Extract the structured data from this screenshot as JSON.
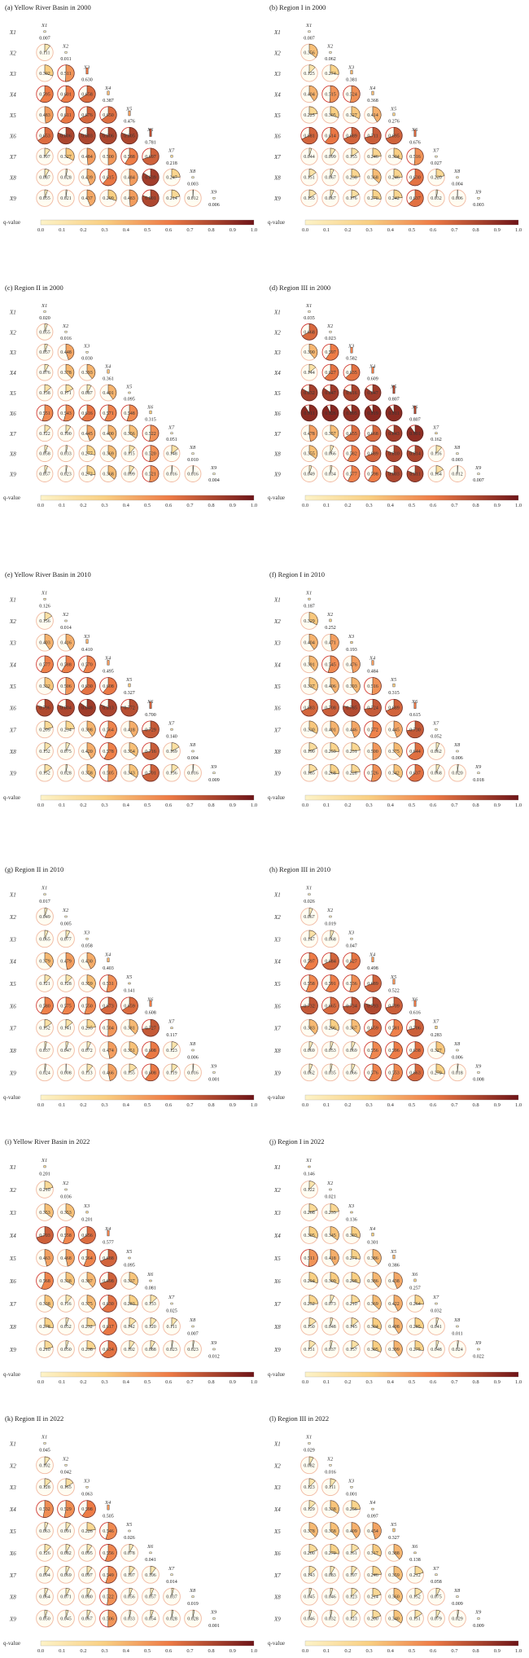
{
  "figure": {
    "legend_label": "q-value",
    "legend_ticks": [
      "0.0",
      "0.1",
      "0.2",
      "0.3",
      "0.4",
      "0.5",
      "0.6",
      "0.7",
      "0.8",
      "0.9",
      "1.0"
    ],
    "legend_range": [
      0,
      1
    ],
    "variables": [
      "X1",
      "X2",
      "X3",
      "X4",
      "X5",
      "X6",
      "X7",
      "X8",
      "X9"
    ],
    "colors": {
      "low": "#fdf3c8",
      "mid1": "#f9cf82",
      "mid2": "#ee7b46",
      "high": "#6e1418",
      "ring": "#f1b9a2",
      "ring_high": "#d23b36",
      "panel_bg": "#fffdf2"
    }
  },
  "chart_data": [
    {
      "type": "heatmap",
      "title": "(a) Yellow River Basin in 2000",
      "diag": [
        0.007,
        0.011,
        0.63,
        0.387,
        0.476,
        0.781,
        0.218,
        0.003,
        0.006
      ],
      "lower": [
        [
          0.111
        ],
        [
          0.302,
          0.511
        ],
        [
          0.595,
          0.601,
          0.658
        ],
        [
          0.483,
          0.611,
          0.676,
          0.65
        ],
        [
          0.653,
          0.806,
          0.803,
          0.806,
          0.805
        ],
        [
          0.107,
          0.327,
          0.484,
          0.5,
          0.588,
          0.697
        ],
        [
          0.087,
          0.028,
          0.439,
          0.615,
          0.484,
          0.839,
          0.247
        ],
        [
          0.055,
          0.021,
          0.437,
          0.299,
          0.483,
          0.801,
          0.214,
          0.012
        ]
      ]
    },
    {
      "type": "heatmap",
      "title": "(b) Region I in 2000",
      "diag": [
        0.007,
        0.062,
        0.381,
        0.368,
        0.276,
        0.676,
        0.027,
        0.004,
        0.003
      ],
      "lower": [
        [
          0.356
        ],
        [
          0.125,
          0.274
        ],
        [
          0.404,
          0.515,
          0.524
        ],
        [
          0.225,
          0.305,
          0.327,
          0.414
        ],
        [
          0.681,
          0.614,
          0.689,
          0.711,
          0.695
        ],
        [
          0.044,
          0.099,
          0.155,
          0.246,
          0.304,
          0.516
        ],
        [
          0.151,
          0.067,
          0.238,
          0.368,
          0.246,
          0.63,
          0.22
        ],
        [
          0.155,
          0.067,
          0.176,
          0.27,
          0.242,
          0.637,
          0.032,
          0.006
        ]
      ]
    },
    {
      "type": "heatmap",
      "title": "(c) Region II in 2000",
      "diag": [
        0.02,
        0.016,
        0.03,
        0.361,
        0.095,
        0.315,
        0.051,
        0.01,
        0.004
      ],
      "lower": [
        [
          0.055
        ],
        [
          0.057,
          0.448
        ],
        [
          0.076,
          0.378,
          0.393
        ],
        [
          0.138,
          0.171,
          0.087,
          0.401
        ],
        [
          0.551,
          0.543,
          0.616,
          0.571,
          0.548
        ],
        [
          0.122,
          0.1,
          0.445,
          0.4,
          0.356,
          0.522
        ],
        [
          0.058,
          0.033,
          0.277,
          0.369,
          0.115,
          0.52,
          0.148
        ],
        [
          0.057,
          0.023,
          0.272,
          0.368,
          0.099,
          0.521,
          0.016,
          0.016
        ]
      ]
    },
    {
      "type": "heatmap",
      "title": "(d) Region III in 2000",
      "diag": [
        0.035,
        0.023,
        0.582,
        0.609,
        0.807,
        0.807,
        0.162,
        0.003,
        0.007
      ],
      "lower": [
        [
          0.668
        ],
        [
          0.39,
          0.597
        ],
        [
          0.144,
          0.627,
          0.635
        ],
        [
          0.832,
          0.847,
          0.816,
          0.847
        ],
        [
          0.911,
          0.926,
          0.895,
          0.919,
          0.911
        ],
        [
          0.478,
          0.357,
          0.655,
          0.668,
          0.843,
          0.901
        ],
        [
          0.355,
          0.066,
          0.582,
          0.689,
          0.81,
          0.814,
          0.116
        ],
        [
          0.049,
          0.034,
          0.577,
          0.598,
          0.803,
          0.811,
          0.164,
          0.012
        ]
      ]
    },
    {
      "type": "heatmap",
      "title": "(e) Yellow River Basin in 2010",
      "diag": [
        0.126,
        0.014,
        0.41,
        0.495,
        0.327,
        0.7,
        0.14,
        0.004,
        0.009
      ],
      "lower": [
        [
          0.156
        ],
        [
          0.403,
          0.416
        ],
        [
          0.577,
          0.588,
          0.57
        ],
        [
          0.332,
          0.506,
          0.63,
          0.608
        ],
        [
          0.796,
          0.804,
          0.848,
          0.813,
          0.772
        ],
        [
          0.209,
          0.234,
          0.398,
          0.564,
          0.418,
          0.729
        ],
        [
          0.132,
          0.075,
          0.42,
          0.578,
          0.354,
          0.716,
          0.169
        ],
        [
          0.152,
          0.028,
          0.358,
          0.505,
          0.343,
          0.701,
          0.136,
          0.016
        ]
      ]
    },
    {
      "type": "heatmap",
      "title": "(f) Region I in 2010",
      "diag": [
        0.187,
        0.252,
        0.193,
        0.484,
        0.315,
        0.615,
        0.052,
        0.006,
        0.018
      ],
      "lower": [
        [
          0.329
        ],
        [
          0.404,
          0.471
        ],
        [
          0.391,
          0.545,
          0.476
        ],
        [
          0.337,
          0.406,
          0.393,
          0.516
        ],
        [
          0.683,
          0.708,
          0.785,
          0.724,
          0.689
        ],
        [
          0.33,
          0.401,
          0.446,
          0.572,
          0.445,
          0.73
        ],
        [
          0.19,
          0.259,
          0.231,
          0.5,
          0.375,
          0.644,
          0.062
        ],
        [
          0.185,
          0.268,
          0.228,
          0.526,
          0.342,
          0.637,
          0.068,
          0.02
        ]
      ]
    },
    {
      "type": "heatmap",
      "title": "(g) Region II in 2010",
      "diag": [
        0.017,
        0.005,
        0.058,
        0.403,
        0.141,
        0.608,
        0.117,
        0.006,
        0.001
      ],
      "lower": [
        [
          0.049
        ],
        [
          0.065,
          0.077
        ],
        [
          0.379,
          0.479,
          0.43
        ],
        [
          0.121,
          0.128,
          0.359,
          0.531
        ],
        [
          0.58,
          0.575,
          0.55,
          0.673,
          0.659
        ],
        [
          0.152,
          0.141,
          0.235,
          0.504,
          0.381,
          0.727
        ],
        [
          0.037,
          0.047,
          0.072,
          0.474,
          0.351,
          0.608,
          0.123
        ],
        [
          0.024,
          0.008,
          0.113,
          0.466,
          0.155,
          0.608,
          0.119,
          0.016
        ]
      ]
    },
    {
      "type": "heatmap",
      "title": "(h) Region III in 2010",
      "diag": [
        0.026,
        0.019,
        0.047,
        0.498,
        0.522,
        0.616,
        0.283,
        0.006,
        0.008
      ],
      "lower": [
        [
          0.067
        ],
        [
          0.147,
          0.068
        ],
        [
          0.597,
          0.684,
          0.627
        ],
        [
          0.558,
          0.591,
          0.536,
          0.689
        ],
        [
          0.732,
          0.665,
          0.734,
          0.793,
          0.709
        ],
        [
          0.383,
          0.296,
          0.367,
          0.659,
          0.581,
          0.706
        ],
        [
          0.069,
          0.053,
          0.069,
          0.556,
          0.596,
          0.638,
          0.327
        ],
        [
          0.062,
          0.035,
          0.066,
          0.576,
          0.553,
          0.663,
          0.279,
          0.018
        ]
      ]
    },
    {
      "type": "heatmap",
      "title": "(i) Yellow River Basin in 2022",
      "diag": [
        0.201,
        0.036,
        0.201,
        0.577,
        0.095,
        0.081,
        0.025,
        0.007,
        0.012
      ],
      "lower": [
        [
          0.21
        ],
        [
          0.353,
          0.353
        ],
        [
          0.703,
          0.558,
          0.656
        ],
        [
          0.463,
          0.468,
          0.564,
          0.688
        ],
        [
          0.568,
          0.338,
          0.387,
          0.698,
          0.337
        ],
        [
          0.338,
          0.116,
          0.375,
          0.63,
          0.283,
          0.133
        ],
        [
          0.278,
          0.052,
          0.232,
          0.617,
          0.142,
          0.12,
          0.111
        ],
        [
          0.21,
          0.05,
          0.238,
          0.634,
          0.102,
          0.088,
          0.023,
          0.023
        ]
      ]
    },
    {
      "type": "heatmap",
      "title": "(j) Region I in 2022",
      "diag": [
        0.146,
        0.021,
        0.136,
        0.301,
        0.386,
        0.257,
        0.032,
        0.011,
        0.022
      ],
      "lower": [
        [
          0.122
        ],
        [
          0.208,
          0.233
        ],
        [
          0.305,
          0.345,
          0.303
        ],
        [
          0.511,
          0.418,
          0.271,
          0.386
        ],
        [
          0.294,
          0.309,
          0.298,
          0.386,
          0.438
        ],
        [
          0.252,
          0.073,
          0.21,
          0.369,
          0.422,
          0.264
        ],
        [
          0.15,
          0.048,
          0.145,
          0.304,
          0.408,
          0.285,
          0.041
        ],
        [
          0.131,
          0.037,
          0.157,
          0.305,
          0.399,
          0.275,
          0.048,
          0.024
        ]
      ]
    },
    {
      "type": "heatmap",
      "title": "(k) Region II in 2022",
      "diag": [
        0.045,
        0.042,
        0.063,
        0.505,
        0.026,
        0.041,
        0.014,
        0.019,
        0.001
      ],
      "lower": [
        [
          0.102
        ],
        [
          0.128,
          0.165
        ],
        [
          0.532,
          0.529,
          0.598
        ],
        [
          0.063,
          0.091,
          0.226,
          0.546
        ],
        [
          0.126,
          0.082,
          0.095,
          0.556,
          0.078
        ],
        [
          0.094,
          0.069,
          0.097,
          0.549,
          0.107,
          0.106
        ],
        [
          0.064,
          0.071,
          0.08,
          0.522,
          0.056,
          0.057,
          0.037
        ],
        [
          0.05,
          0.045,
          0.067,
          0.506,
          0.033,
          0.054,
          0.028,
          0.028
        ]
      ]
    },
    {
      "type": "heatmap",
      "title": "(l) Region III in 2022",
      "diag": [
        0.029,
        0.016,
        0.001,
        0.097,
        0.327,
        0.138,
        0.058,
        0.009,
        0.009
      ],
      "lower": [
        [
          0.082
        ],
        [
          0.123,
          0.111
        ],
        [
          0.129,
          0.338,
          0.256
        ],
        [
          0.378,
          0.358,
          0.409,
          0.454
        ],
        [
          0.2,
          0.27,
          0.161,
          0.317,
          0.388
        ],
        [
          0.143,
          0.083,
          0.107,
          0.246,
          0.359,
          0.212
        ],
        [
          0.045,
          0.046,
          0.123,
          0.214,
          0.36,
          0.152,
          0.075
        ],
        [
          0.046,
          0.032,
          0.123,
          0.2,
          0.34,
          0.151,
          0.079,
          0.029
        ]
      ]
    }
  ]
}
